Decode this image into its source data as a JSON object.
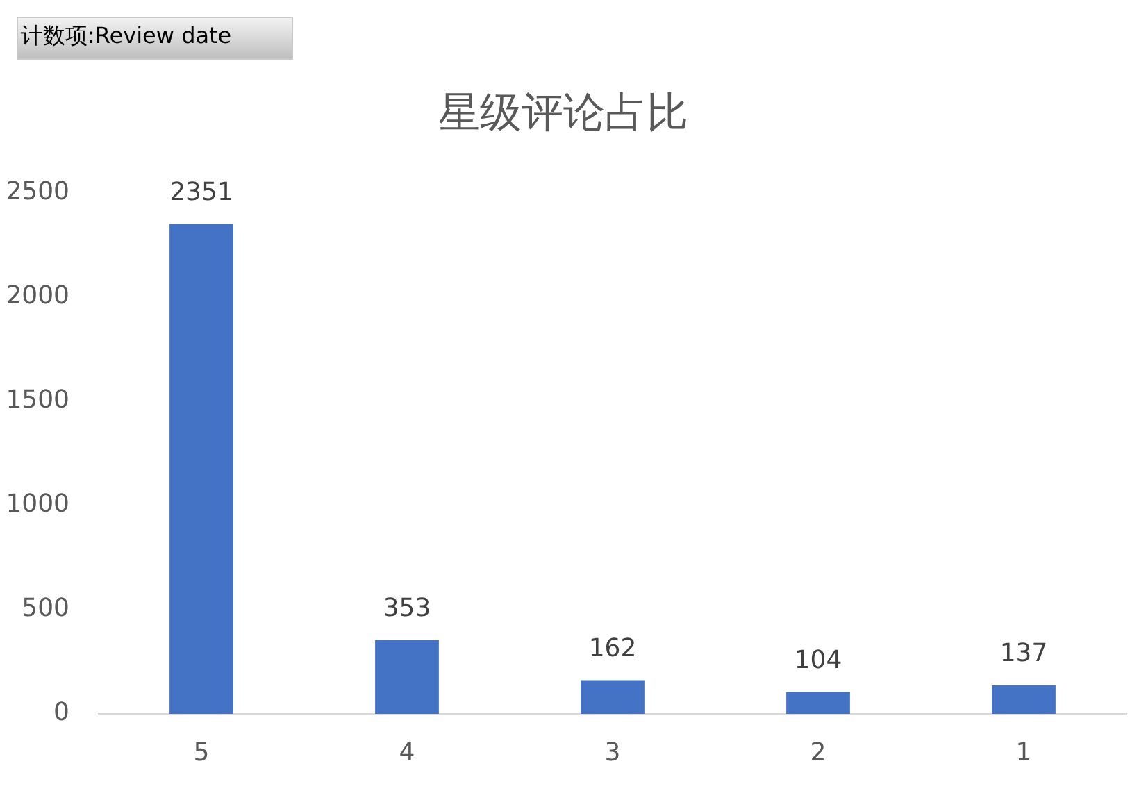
{
  "chart_data": {
    "type": "bar",
    "title": "星级评论占比",
    "annotations": [
      "计数项:Review date"
    ],
    "categories": [
      "5",
      "4",
      "3",
      "2",
      "1"
    ],
    "values": [
      2351,
      353,
      162,
      104,
      137
    ],
    "color": "#4472c4",
    "ylim": [
      0,
      2500
    ],
    "yticks": [
      0,
      500,
      1000,
      1500,
      2000,
      2500
    ],
    "grid": false,
    "legend": false,
    "data_labels": true
  }
}
